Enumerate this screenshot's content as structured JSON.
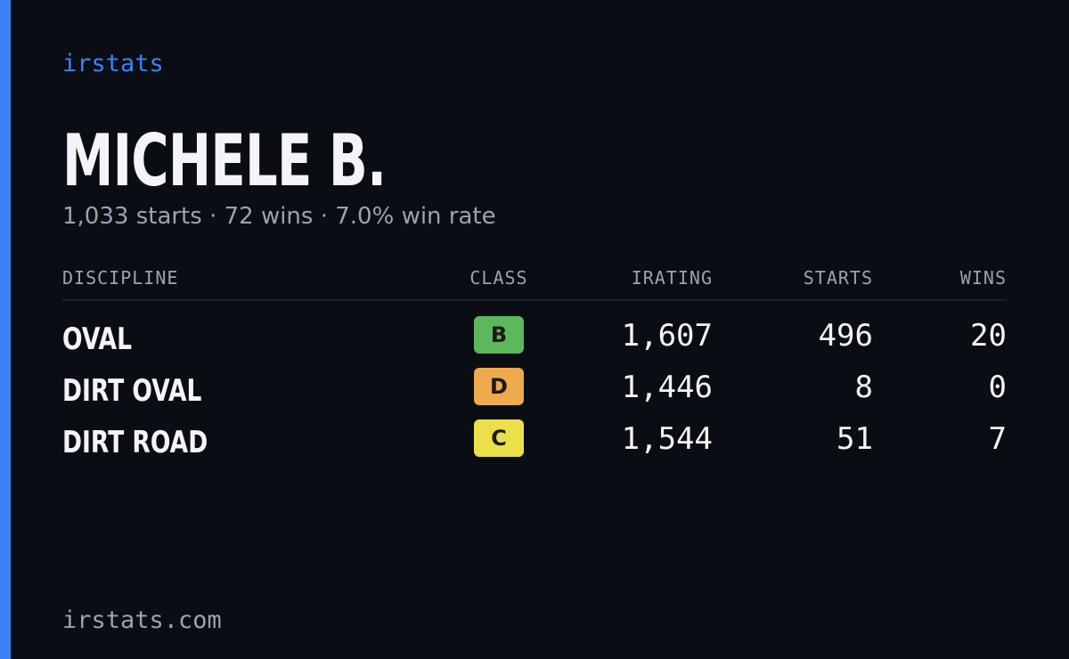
{
  "brand": "irstats",
  "driver": {
    "name": "MICHELE B.",
    "summary": "1,033 starts · 72 wins · 7.0% win rate"
  },
  "table": {
    "headers": [
      "DISCIPLINE",
      "CLASS",
      "IRATING",
      "STARTS",
      "WINS"
    ],
    "rows": [
      {
        "discipline": "OVAL",
        "class": "B",
        "class_color": "#5cb85c",
        "irating": "1,607",
        "starts": "496",
        "wins": "20"
      },
      {
        "discipline": "DIRT OVAL",
        "class": "D",
        "class_color": "#eeaa4c",
        "irating": "1,446",
        "starts": "8",
        "wins": "0"
      },
      {
        "discipline": "DIRT ROAD",
        "class": "C",
        "class_color": "#ebe04a",
        "irating": "1,544",
        "starts": "51",
        "wins": "7"
      }
    ]
  },
  "footer": "irstats.com"
}
